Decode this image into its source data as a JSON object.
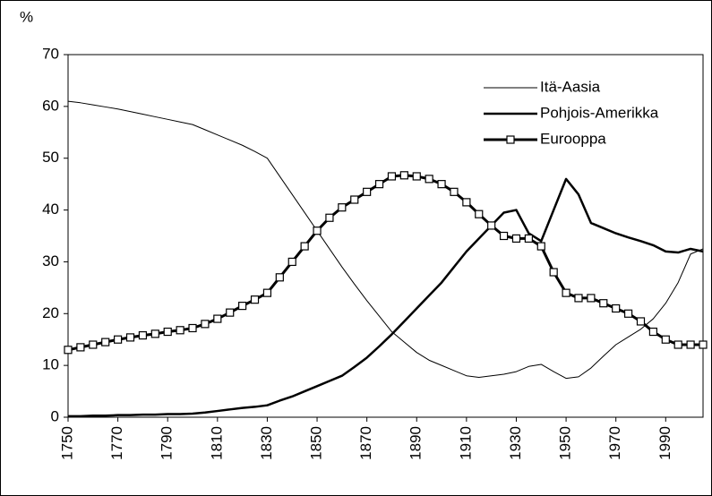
{
  "chart_data": {
    "type": "line",
    "y_unit_label": "%",
    "x": [
      1750,
      1755,
      1760,
      1765,
      1770,
      1775,
      1780,
      1785,
      1790,
      1795,
      1800,
      1805,
      1810,
      1815,
      1820,
      1825,
      1830,
      1835,
      1840,
      1845,
      1850,
      1855,
      1860,
      1865,
      1870,
      1875,
      1880,
      1885,
      1890,
      1895,
      1900,
      1905,
      1910,
      1915,
      1920,
      1925,
      1930,
      1935,
      1940,
      1945,
      1950,
      1955,
      1960,
      1965,
      1970,
      1975,
      1980,
      1985,
      1990,
      1995,
      2000,
      2005
    ],
    "series": [
      {
        "name": "Itä-Aasia",
        "color": "#000000",
        "width": 1,
        "marker": false,
        "values": [
          61,
          60.7,
          60.3,
          59.9,
          59.5,
          59,
          58.5,
          58,
          57.5,
          57,
          56.5,
          55.5,
          54.5,
          53.5,
          52.5,
          51.3,
          50,
          46.5,
          43,
          39.5,
          36,
          32.5,
          29,
          25.7,
          22.5,
          19.5,
          16.5,
          14.5,
          12.5,
          11,
          10,
          9,
          8,
          7.7,
          8,
          8.3,
          8.8,
          9.8,
          10.2,
          8.8,
          7.5,
          7.8,
          9.5,
          11.8,
          14,
          15.5,
          17,
          19,
          22,
          26,
          31.5,
          32.5
        ]
      },
      {
        "name": "Pohjois-Amerikka",
        "color": "#000000",
        "width": 2.5,
        "marker": false,
        "values": [
          0.2,
          0.2,
          0.3,
          0.3,
          0.4,
          0.4,
          0.5,
          0.5,
          0.6,
          0.6,
          0.7,
          0.9,
          1.2,
          1.5,
          1.8,
          2,
          2.3,
          3.2,
          4,
          5,
          6,
          7,
          8,
          9.7,
          11.5,
          13.7,
          16,
          18.5,
          21,
          23.5,
          26,
          29,
          32,
          34.5,
          37,
          39.5,
          40,
          35.5,
          34,
          40,
          46,
          43,
          37.5,
          36.5,
          35.5,
          34.7,
          34,
          33.2,
          32,
          31.8,
          32.5,
          32
        ]
      },
      {
        "name": "Eurooppa",
        "color": "#000000",
        "width": 3,
        "marker": true,
        "values": [
          13,
          13.5,
          14,
          14.5,
          15,
          15.4,
          15.8,
          16.1,
          16.5,
          16.8,
          17.2,
          18,
          19,
          20.2,
          21.5,
          22.7,
          24,
          27,
          30,
          33,
          36,
          38.5,
          40.5,
          42,
          43.5,
          45,
          46.5,
          46.7,
          46.5,
          46,
          45,
          43.5,
          41.5,
          39.2,
          37,
          35,
          34.5,
          34.5,
          33,
          28,
          24,
          23,
          23,
          22,
          21,
          20,
          18.5,
          16.5,
          15,
          14,
          14,
          14
        ]
      }
    ],
    "xlim": [
      1750,
      2005
    ],
    "ylim": [
      0,
      70
    ],
    "xticks": [
      1750,
      1770,
      1790,
      1810,
      1830,
      1850,
      1870,
      1890,
      1910,
      1930,
      1950,
      1970,
      1990
    ],
    "yticks": [
      0,
      10,
      20,
      30,
      40,
      50,
      60,
      70
    ],
    "grid": false,
    "legend": "upper-right"
  }
}
